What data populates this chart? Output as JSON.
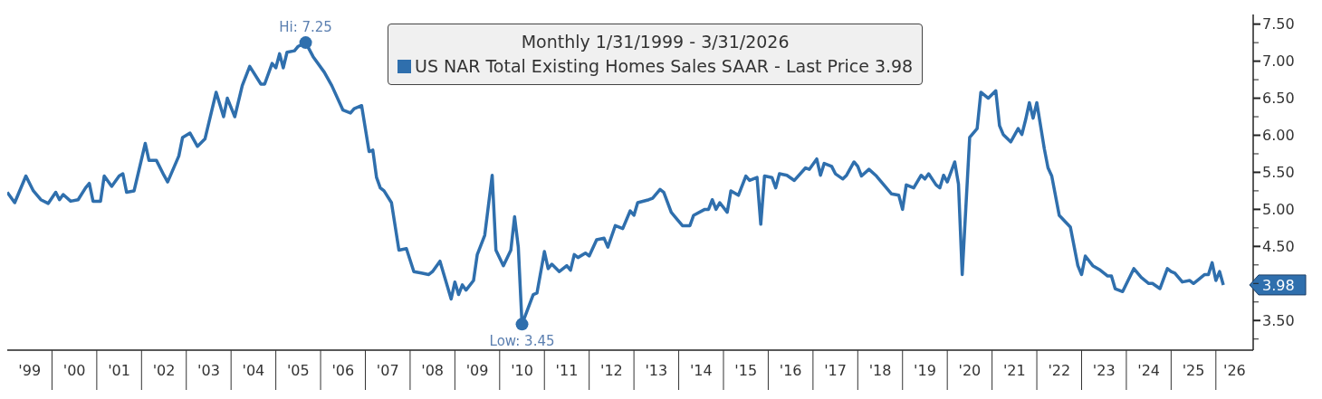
{
  "chart_data": {
    "type": "line",
    "legend_title": "Monthly 1/31/1999 - 3/31/2026",
    "legend": "top",
    "marker": "none",
    "grid": false,
    "line_style": "solid",
    "x": [
      "1999-01",
      "1999-03",
      "1999-06",
      "1999-08",
      "1999-10",
      "1999-12",
      "2000-02",
      "2000-03",
      "2000-04",
      "2000-06",
      "2000-08",
      "2000-10",
      "2000-11",
      "2000-12",
      "2001-02",
      "2001-03",
      "2001-05",
      "2001-07",
      "2001-08",
      "2001-09",
      "2001-11",
      "2002-02",
      "2002-03",
      "2002-05",
      "2002-07",
      "2002-08",
      "2002-11",
      "2002-12",
      "2003-02",
      "2003-04",
      "2003-06",
      "2003-09",
      "2003-11",
      "2003-12",
      "2004-02",
      "2004-04",
      "2004-06",
      "2004-09",
      "2004-10",
      "2004-12",
      "2005-01",
      "2005-02",
      "2005-03",
      "2005-04",
      "2005-06",
      "2005-07",
      "2005-09",
      "2005-11",
      "2006-02",
      "2006-04",
      "2006-07",
      "2006-09",
      "2006-10",
      "2006-12",
      "2007-02",
      "2007-03",
      "2007-04",
      "2007-05",
      "2007-06",
      "2007-08",
      "2007-10",
      "2007-12",
      "2008-02",
      "2008-04",
      "2008-06",
      "2008-07",
      "2008-09",
      "2008-12",
      "2009-01",
      "2009-02",
      "2009-03",
      "2009-04",
      "2009-06",
      "2009-07",
      "2009-09",
      "2009-11",
      "2009-12",
      "2010-02",
      "2010-04",
      "2010-05",
      "2010-06",
      "2010-07",
      "2010-10",
      "2010-11",
      "2011-01",
      "2011-02",
      "2011-03",
      "2011-05",
      "2011-07",
      "2011-08",
      "2011-09",
      "2011-10",
      "2011-12",
      "2012-01",
      "2012-03",
      "2012-05",
      "2012-06",
      "2012-08",
      "2012-10",
      "2012-12",
      "2013-01",
      "2013-02",
      "2013-05",
      "2013-06",
      "2013-08",
      "2013-09",
      "2013-11",
      "2013-12",
      "2014-02",
      "2014-04",
      "2014-05",
      "2014-08",
      "2014-09",
      "2014-10",
      "2014-11",
      "2014-12",
      "2015-02",
      "2015-03",
      "2015-05",
      "2015-07",
      "2015-08",
      "2015-10",
      "2015-11",
      "2015-12",
      "2016-02",
      "2016-03",
      "2016-04",
      "2016-06",
      "2016-08",
      "2016-11",
      "2016-12",
      "2017-02",
      "2017-03",
      "2017-04",
      "2017-06",
      "2017-07",
      "2017-09",
      "2017-10",
      "2017-12",
      "2018-01",
      "2018-02",
      "2018-04",
      "2018-06",
      "2018-08",
      "2018-10",
      "2018-12",
      "2019-01",
      "2019-02",
      "2019-04",
      "2019-06",
      "2019-07",
      "2019-08",
      "2019-10",
      "2019-11",
      "2019-12",
      "2020-01",
      "2020-03",
      "2020-04",
      "2020-05",
      "2020-07",
      "2020-09",
      "2020-10",
      "2020-12",
      "2021-02",
      "2021-03",
      "2021-04",
      "2021-06",
      "2021-08",
      "2021-09",
      "2021-10",
      "2021-11",
      "2021-12",
      "2022-01",
      "2022-03",
      "2022-04",
      "2022-05",
      "2022-07",
      "2022-10",
      "2022-12",
      "2023-01",
      "2023-02",
      "2023-04",
      "2023-06",
      "2023-08",
      "2023-09",
      "2023-10",
      "2023-12",
      "2024-03",
      "2024-05",
      "2024-07",
      "2024-08",
      "2024-10",
      "2024-12",
      "2025-01",
      "2025-02",
      "2025-04",
      "2025-06",
      "2025-07",
      "2025-08",
      "2025-10",
      "2025-11",
      "2025-12",
      "2026-01",
      "2026-02",
      "2026-03"
    ],
    "series": [
      {
        "name": "US NAR Total Existing Homes Sales SAAR - Last Price 3.98",
        "color": "#2f6fad",
        "values": [
          5.23,
          5.09,
          5.45,
          5.25,
          5.13,
          5.08,
          5.23,
          5.13,
          5.2,
          5.11,
          5.13,
          5.29,
          5.35,
          5.11,
          5.11,
          5.45,
          5.31,
          5.45,
          5.48,
          5.23,
          5.25,
          5.89,
          5.66,
          5.66,
          5.46,
          5.37,
          5.72,
          5.97,
          6.03,
          5.85,
          5.95,
          6.58,
          6.25,
          6.5,
          6.25,
          6.67,
          6.93,
          6.69,
          6.69,
          6.97,
          6.91,
          7.1,
          6.91,
          7.12,
          7.14,
          7.2,
          7.25,
          7.06,
          6.85,
          6.67,
          6.34,
          6.3,
          6.36,
          6.4,
          5.78,
          5.8,
          5.43,
          5.29,
          5.25,
          5.09,
          4.45,
          4.47,
          4.16,
          4.14,
          4.12,
          4.16,
          4.3,
          3.79,
          4.02,
          3.85,
          3.98,
          3.91,
          4.04,
          4.39,
          4.65,
          5.46,
          4.45,
          4.24,
          4.45,
          4.9,
          4.49,
          3.45,
          3.85,
          3.87,
          4.43,
          4.2,
          4.26,
          4.16,
          4.24,
          4.18,
          4.39,
          4.35,
          4.41,
          4.37,
          4.59,
          4.61,
          4.49,
          4.78,
          4.74,
          4.98,
          4.92,
          5.09,
          5.13,
          5.15,
          5.27,
          5.23,
          4.96,
          4.9,
          4.78,
          4.78,
          4.92,
          5.0,
          5.0,
          5.13,
          5.0,
          5.09,
          4.96,
          5.25,
          5.19,
          5.45,
          5.39,
          5.43,
          4.8,
          5.45,
          5.43,
          5.29,
          5.48,
          5.46,
          5.39,
          5.56,
          5.54,
          5.68,
          5.46,
          5.62,
          5.58,
          5.48,
          5.41,
          5.46,
          5.64,
          5.58,
          5.45,
          5.54,
          5.45,
          5.33,
          5.21,
          5.19,
          5.0,
          5.33,
          5.29,
          5.46,
          5.41,
          5.48,
          5.33,
          5.29,
          5.46,
          5.37,
          5.64,
          5.34,
          4.12,
          5.97,
          6.09,
          6.58,
          6.5,
          6.6,
          6.13,
          6.01,
          5.91,
          6.09,
          6.01,
          6.21,
          6.44,
          6.23,
          6.44,
          5.82,
          5.56,
          5.45,
          4.92,
          4.76,
          4.24,
          4.12,
          4.37,
          4.24,
          4.18,
          4.1,
          4.1,
          3.93,
          3.89,
          4.2,
          4.08,
          4.0,
          4.0,
          3.93,
          4.2,
          4.16,
          4.14,
          4.02,
          4.04,
          4.0,
          4.04,
          4.12,
          4.12,
          4.28,
          4.04,
          4.16,
          3.98
        ]
      }
    ],
    "xlim": [
      "1999-01",
      "2026-11"
    ],
    "xticks": [
      {
        "value": "1999-07",
        "label": "'99"
      },
      {
        "value": "2000-01",
        "label": null
      },
      {
        "value": "2000-07",
        "label": "'00"
      },
      {
        "value": "2001-01",
        "label": null
      },
      {
        "value": "2001-07",
        "label": "'01"
      },
      {
        "value": "2002-01",
        "label": null
      },
      {
        "value": "2002-07",
        "label": "'02"
      },
      {
        "value": "2003-01",
        "label": null
      },
      {
        "value": "2003-07",
        "label": "'03"
      },
      {
        "value": "2004-01",
        "label": null
      },
      {
        "value": "2004-07",
        "label": "'04"
      },
      {
        "value": "2005-01",
        "label": null
      },
      {
        "value": "2005-07",
        "label": "'05"
      },
      {
        "value": "2006-01",
        "label": null
      },
      {
        "value": "2006-07",
        "label": "'06"
      },
      {
        "value": "2007-01",
        "label": null
      },
      {
        "value": "2007-07",
        "label": "'07"
      },
      {
        "value": "2008-01",
        "label": null
      },
      {
        "value": "2008-07",
        "label": "'08"
      },
      {
        "value": "2009-01",
        "label": null
      },
      {
        "value": "2009-07",
        "label": "'09"
      },
      {
        "value": "2010-01",
        "label": null
      },
      {
        "value": "2010-07",
        "label": "'10"
      },
      {
        "value": "2011-01",
        "label": null
      },
      {
        "value": "2011-07",
        "label": "'11"
      },
      {
        "value": "2012-01",
        "label": null
      },
      {
        "value": "2012-07",
        "label": "'12"
      },
      {
        "value": "2013-01",
        "label": null
      },
      {
        "value": "2013-07",
        "label": "'13"
      },
      {
        "value": "2014-01",
        "label": null
      },
      {
        "value": "2014-07",
        "label": "'14"
      },
      {
        "value": "2015-01",
        "label": null
      },
      {
        "value": "2015-07",
        "label": "'15"
      },
      {
        "value": "2016-01",
        "label": null
      },
      {
        "value": "2016-07",
        "label": "'16"
      },
      {
        "value": "2017-01",
        "label": null
      },
      {
        "value": "2017-07",
        "label": "'17"
      },
      {
        "value": "2018-01",
        "label": null
      },
      {
        "value": "2018-07",
        "label": "'18"
      },
      {
        "value": "2019-01",
        "label": null
      },
      {
        "value": "2019-07",
        "label": "'19"
      },
      {
        "value": "2020-01",
        "label": null
      },
      {
        "value": "2020-07",
        "label": "'20"
      },
      {
        "value": "2021-01",
        "label": null
      },
      {
        "value": "2021-07",
        "label": "'21"
      },
      {
        "value": "2022-01",
        "label": null
      },
      {
        "value": "2022-07",
        "label": "'22"
      },
      {
        "value": "2023-01",
        "label": null
      },
      {
        "value": "2023-07",
        "label": "'23"
      },
      {
        "value": "2024-01",
        "label": null
      },
      {
        "value": "2024-07",
        "label": "'24"
      },
      {
        "value": "2025-01",
        "label": null
      },
      {
        "value": "2025-07",
        "label": "'25"
      },
      {
        "value": "2026-01",
        "label": null
      },
      {
        "value": "2026-06",
        "label": "'26"
      }
    ],
    "ylim": [
      3.1,
      7.63
    ],
    "yticks": [
      {
        "value": 3.25,
        "label": null
      },
      {
        "value": 3.5,
        "label": "3.50"
      },
      {
        "value": 3.75,
        "label": null
      },
      {
        "value": 4,
        "label": null
      },
      {
        "value": 4.25,
        "label": null
      },
      {
        "value": 4.5,
        "label": "4.50"
      },
      {
        "value": 4.75,
        "label": null
      },
      {
        "value": 5,
        "label": "5.00"
      },
      {
        "value": 5.25,
        "label": null
      },
      {
        "value": 5.5,
        "label": "5.50"
      },
      {
        "value": 5.75,
        "label": null
      },
      {
        "value": 6,
        "label": "6.00"
      },
      {
        "value": 6.25,
        "label": null
      },
      {
        "value": 6.5,
        "label": "6.50"
      },
      {
        "value": 6.75,
        "label": null
      },
      {
        "value": 7,
        "label": "7.00"
      },
      {
        "value": 7.25,
        "label": null
      },
      {
        "value": 7.5,
        "label": "7.50"
      }
    ],
    "annotations": [
      {
        "text": "Hi: 7.25",
        "x": "2005-09",
        "y": 7.25
      },
      {
        "text": "Low: 3.45",
        "x": "2010-07",
        "y": 3.45
      },
      {
        "text": "3.98",
        "x": "2026-03",
        "y": 3.98
      }
    ]
  }
}
